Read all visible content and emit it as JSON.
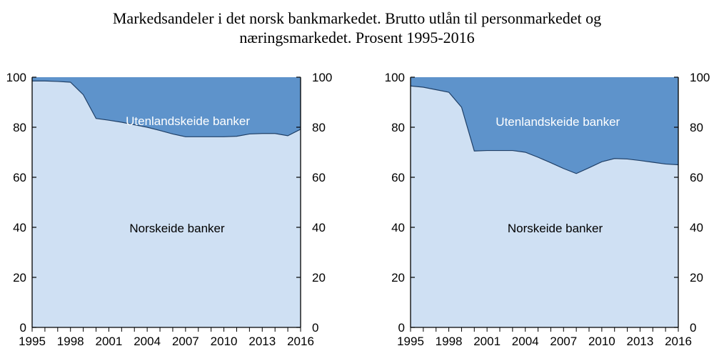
{
  "title_line1": "Markedsandeler i det norsk bankmarkedet. Brutto utlån til personmarkedet og",
  "title_line2": "næringsmarkedet. Prosent 1995-2016",
  "colors": {
    "norskeide": "#cfe0f3",
    "utenlandskeide": "#5e93cb",
    "boundary": "#1f3f66",
    "axis": "#000000"
  },
  "chart_data": [
    {
      "type": "area",
      "x": [
        1995,
        1996,
        1997,
        1998,
        1999,
        2000,
        2001,
        2002,
        2003,
        2004,
        2005,
        2006,
        2007,
        2008,
        2009,
        2010,
        2011,
        2012,
        2013,
        2014,
        2015,
        2016
      ],
      "series": [
        {
          "name": "Norskeide banker",
          "values": [
            98.5,
            98.5,
            98.3,
            98.0,
            93.0,
            83.5,
            82.8,
            82.0,
            81.0,
            80.0,
            78.7,
            77.3,
            76.2,
            76.2,
            76.2,
            76.2,
            76.4,
            77.3,
            77.5,
            77.5,
            76.6,
            79.2
          ]
        },
        {
          "name": "Utenlandskeide banker",
          "values": [
            1.5,
            1.5,
            1.7,
            2.0,
            7.0,
            16.5,
            17.2,
            18.0,
            19.0,
            20.0,
            21.3,
            22.7,
            23.8,
            23.8,
            23.8,
            23.8,
            23.6,
            22.7,
            22.5,
            22.5,
            23.4,
            20.8
          ]
        }
      ],
      "xticks": [
        1995,
        1998,
        2001,
        2004,
        2007,
        2010,
        2013,
        2016
      ],
      "yticks": [
        0,
        20,
        40,
        60,
        80,
        100
      ],
      "xlim": [
        1995,
        2016
      ],
      "ylim": [
        0,
        100
      ],
      "grid": false
    },
    {
      "type": "area",
      "x": [
        1995,
        1996,
        1997,
        1998,
        1999,
        2000,
        2001,
        2002,
        2003,
        2004,
        2005,
        2006,
        2007,
        2008,
        2009,
        2010,
        2011,
        2012,
        2013,
        2014,
        2015,
        2016
      ],
      "series": [
        {
          "name": "Norskeide banker",
          "values": [
            96.5,
            96.0,
            95.0,
            94.0,
            88.0,
            70.5,
            70.7,
            70.7,
            70.7,
            70.0,
            68.0,
            65.8,
            63.5,
            61.5,
            63.8,
            66.2,
            67.5,
            67.3,
            66.7,
            66.0,
            65.3,
            65.0
          ]
        },
        {
          "name": "Utenlandskeide banker",
          "values": [
            3.5,
            4.0,
            5.0,
            6.0,
            12.0,
            29.5,
            29.3,
            29.3,
            29.3,
            30.0,
            32.0,
            34.2,
            36.5,
            38.5,
            36.2,
            33.8,
            32.5,
            32.7,
            33.3,
            34.0,
            34.7,
            35.0
          ]
        }
      ],
      "xticks": [
        1995,
        1998,
        2001,
        2004,
        2007,
        2010,
        2013,
        2016
      ],
      "yticks": [
        0,
        20,
        40,
        60,
        80,
        100
      ],
      "xlim": [
        1995,
        2016
      ],
      "ylim": [
        0,
        100
      ],
      "grid": false
    }
  ]
}
